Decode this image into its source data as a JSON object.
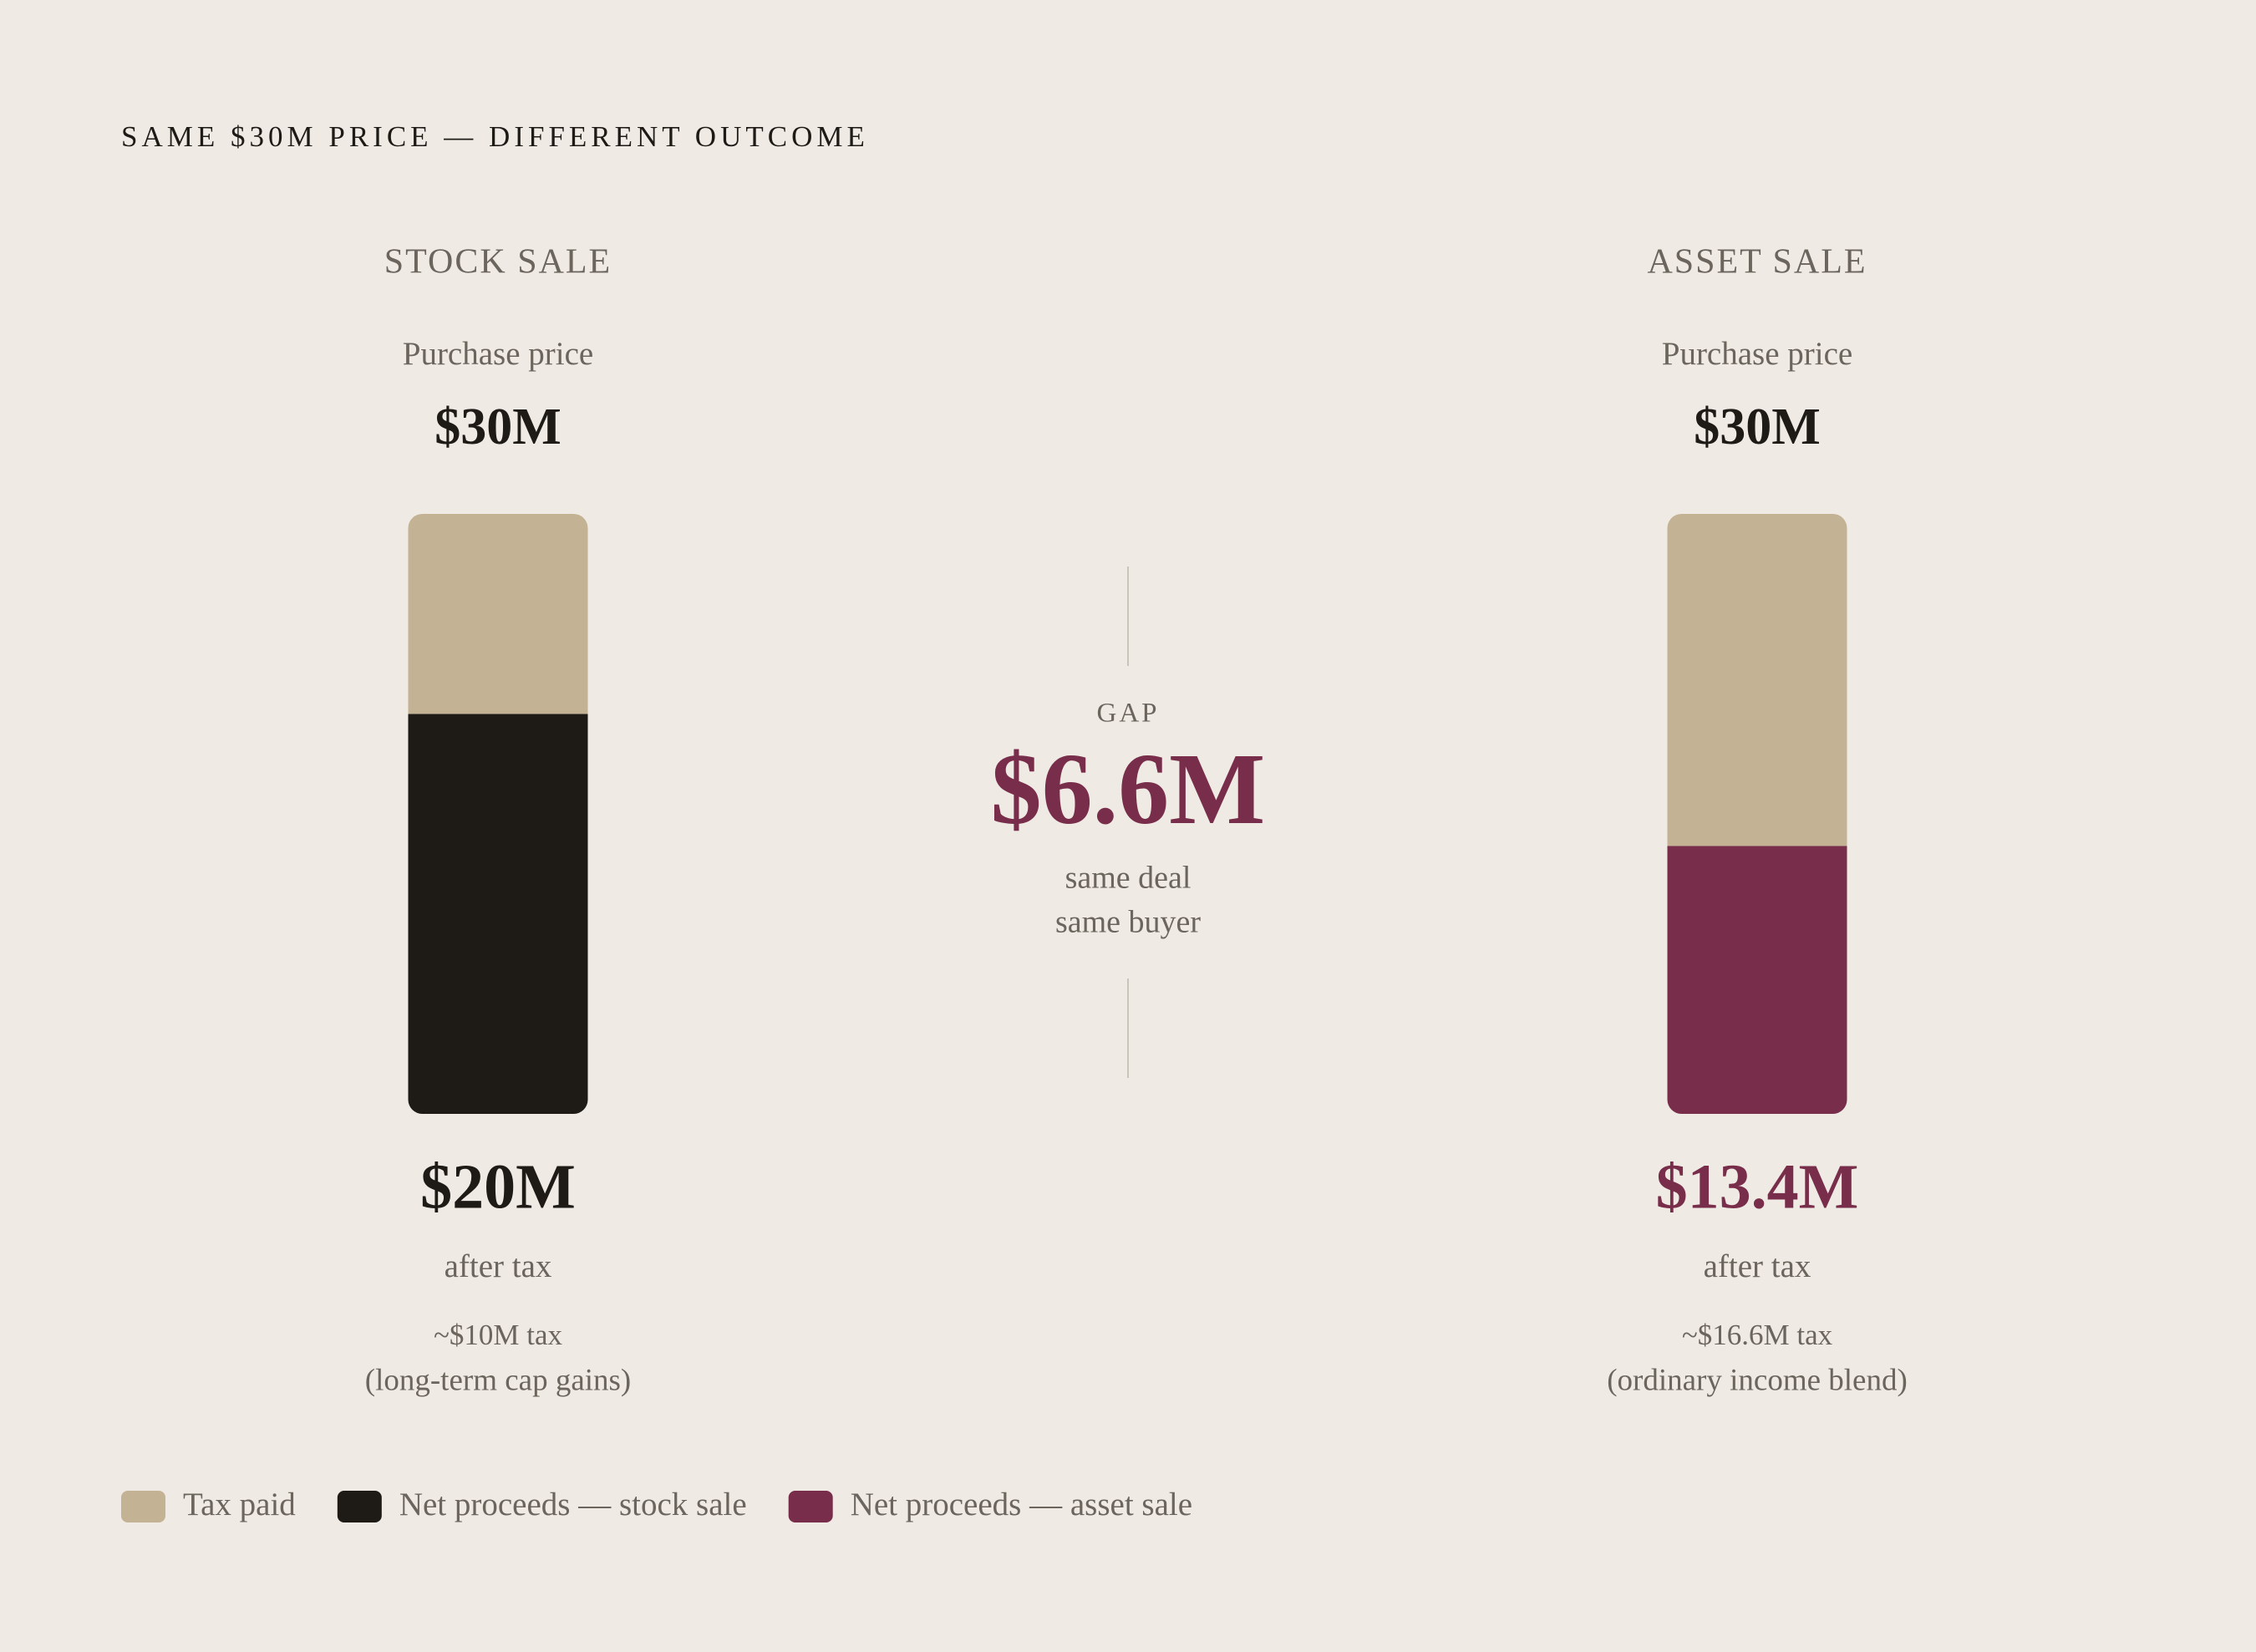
{
  "chart_data": {
    "type": "bar",
    "stacked": true,
    "title": "SAME $30M PRICE — DIFFERENT OUTCOME",
    "categories": [
      "STOCK SALE",
      "ASSET SALE"
    ],
    "totals": {
      "label": "Purchase price",
      "values": [
        30,
        30
      ],
      "value_labels": [
        "$30M",
        "$30M"
      ]
    },
    "series": [
      {
        "name": "Tax paid",
        "color": "#c4b294",
        "values": [
          10,
          16.6
        ],
        "value_labels": [
          "~$10M tax",
          "~$16.6M tax"
        ]
      },
      {
        "name": "Net proceeds — stock sale",
        "color": "#1e1b17",
        "values": [
          20,
          null
        ],
        "value_labels": [
          "$20M",
          null
        ]
      },
      {
        "name": "Net proceeds — asset sale",
        "color": "#782e4b",
        "values": [
          null,
          13.4
        ],
        "value_labels": [
          null,
          "$13.4M"
        ]
      }
    ],
    "net_caption": "after tax",
    "tax_notes": [
      "(long-term cap gains)",
      "(ordinary income blend)"
    ],
    "gap": {
      "label": "GAP",
      "value": 6.6,
      "value_label": "$6.6M",
      "notes": [
        "same deal",
        "same buyer"
      ],
      "color": "#782e4b"
    }
  }
}
